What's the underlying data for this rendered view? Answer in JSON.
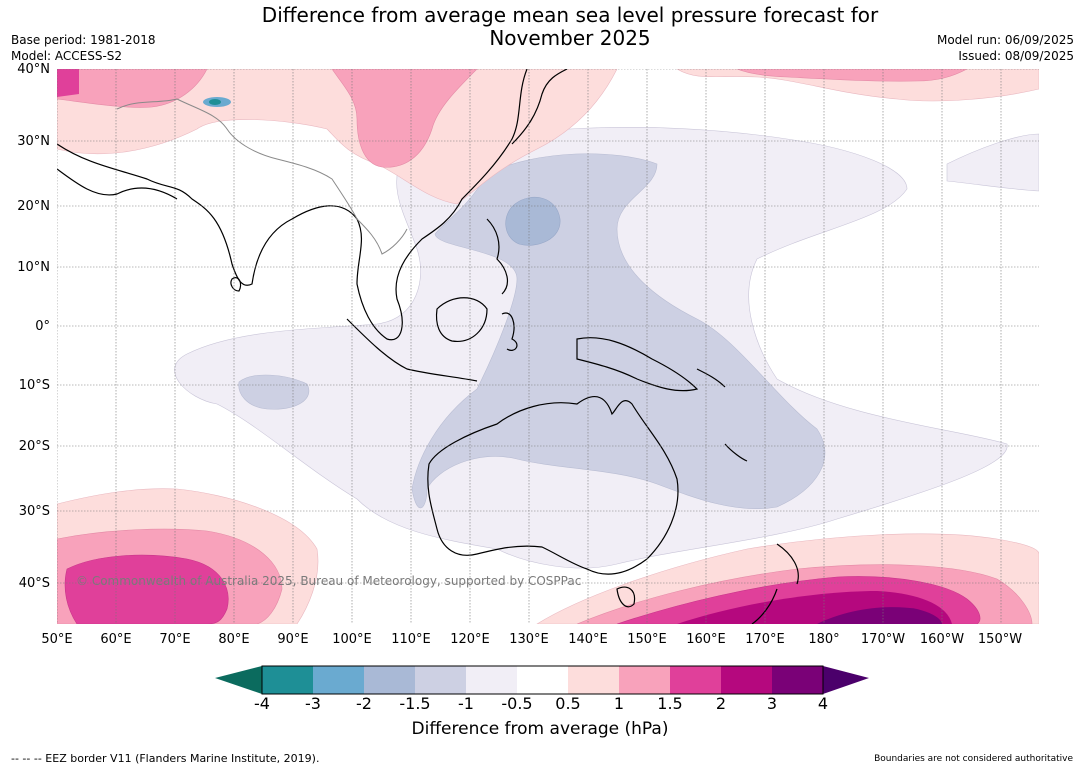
{
  "header": {
    "title_line1": "Difference from average mean sea level pressure forecast for",
    "title_line2": "November 2025",
    "base_period": "Base period: 1981-2018",
    "model": "Model: ACCESS-S2",
    "model_run": "Model run: 06/09/2025",
    "issued": "Issued: 08/09/2025"
  },
  "map": {
    "lat_labels": [
      "40°N",
      "30°N",
      "20°N",
      "10°N",
      "0°",
      "10°S",
      "20°S",
      "30°S",
      "40°S"
    ],
    "lon_labels": [
      "50°E",
      "60°E",
      "70°E",
      "80°E",
      "90°E",
      "100°E",
      "110°E",
      "120°E",
      "130°E",
      "140°E",
      "150°E",
      "160°E",
      "170°E",
      "180°",
      "170°W",
      "160°W",
      "150°W"
    ],
    "copyright": "© Commonwealth of Australia 2025, Bureau of Meteorology, supported by COSPPac",
    "gridlines": true
  },
  "colorbar": {
    "label": "Difference from average (hPa)",
    "ticks": [
      "-4",
      "-3",
      "-2",
      "-1.5",
      "-1",
      "-0.5",
      "0.5",
      "1",
      "1.5",
      "2",
      "3",
      "4"
    ],
    "colors": {
      "below_min": "#0b6b5e",
      "-4_-3": "#1e8f96",
      "-3_-2": "#6aaad0",
      "-2_-1.5": "#a9b9d6",
      "-1.5_-1": "#cdd0e3",
      "-1_-0.5": "#f1eef6",
      "-0.5_0.5": "#ffffff",
      "0.5_1": "#fddddc",
      "1_1.5": "#f8a2bb",
      "1.5_2": "#e0409a",
      "2_3": "#b5087e",
      "3_4": "#7a0177",
      "above_max": "#4b006b"
    }
  },
  "footer": {
    "eez_note": "--  --  -- EEZ border V11 (Flanders Marine Institute, 2019).",
    "disclaimer": "Boundaries are not considered authoritative"
  }
}
